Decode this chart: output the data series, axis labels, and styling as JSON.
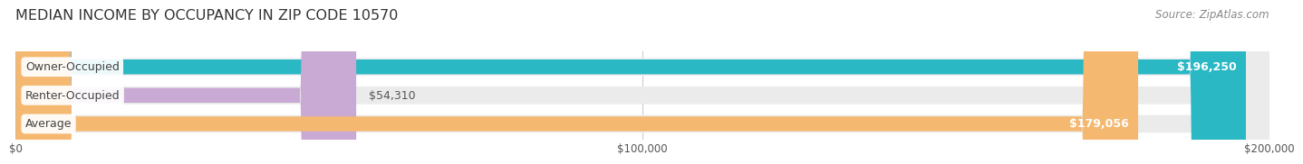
{
  "title": "MEDIAN INCOME BY OCCUPANCY IN ZIP CODE 10570",
  "source": "Source: ZipAtlas.com",
  "categories": [
    "Owner-Occupied",
    "Renter-Occupied",
    "Average"
  ],
  "values": [
    196250,
    54310,
    179056
  ],
  "bar_colors": [
    "#2ab8c5",
    "#c9aad4",
    "#f5b870"
  ],
  "bar_bg_color": "#ebebeb",
  "value_labels": [
    "$196,250",
    "$54,310",
    "$179,056"
  ],
  "xlim": [
    0,
    200000
  ],
  "xticks": [
    0,
    100000,
    200000
  ],
  "xtick_labels": [
    "$0",
    "$100,000",
    "$200,000"
  ],
  "fig_bg_color": "#ffffff",
  "title_fontsize": 11.5,
  "source_fontsize": 8.5,
  "label_fontsize": 9,
  "value_fontsize": 9
}
